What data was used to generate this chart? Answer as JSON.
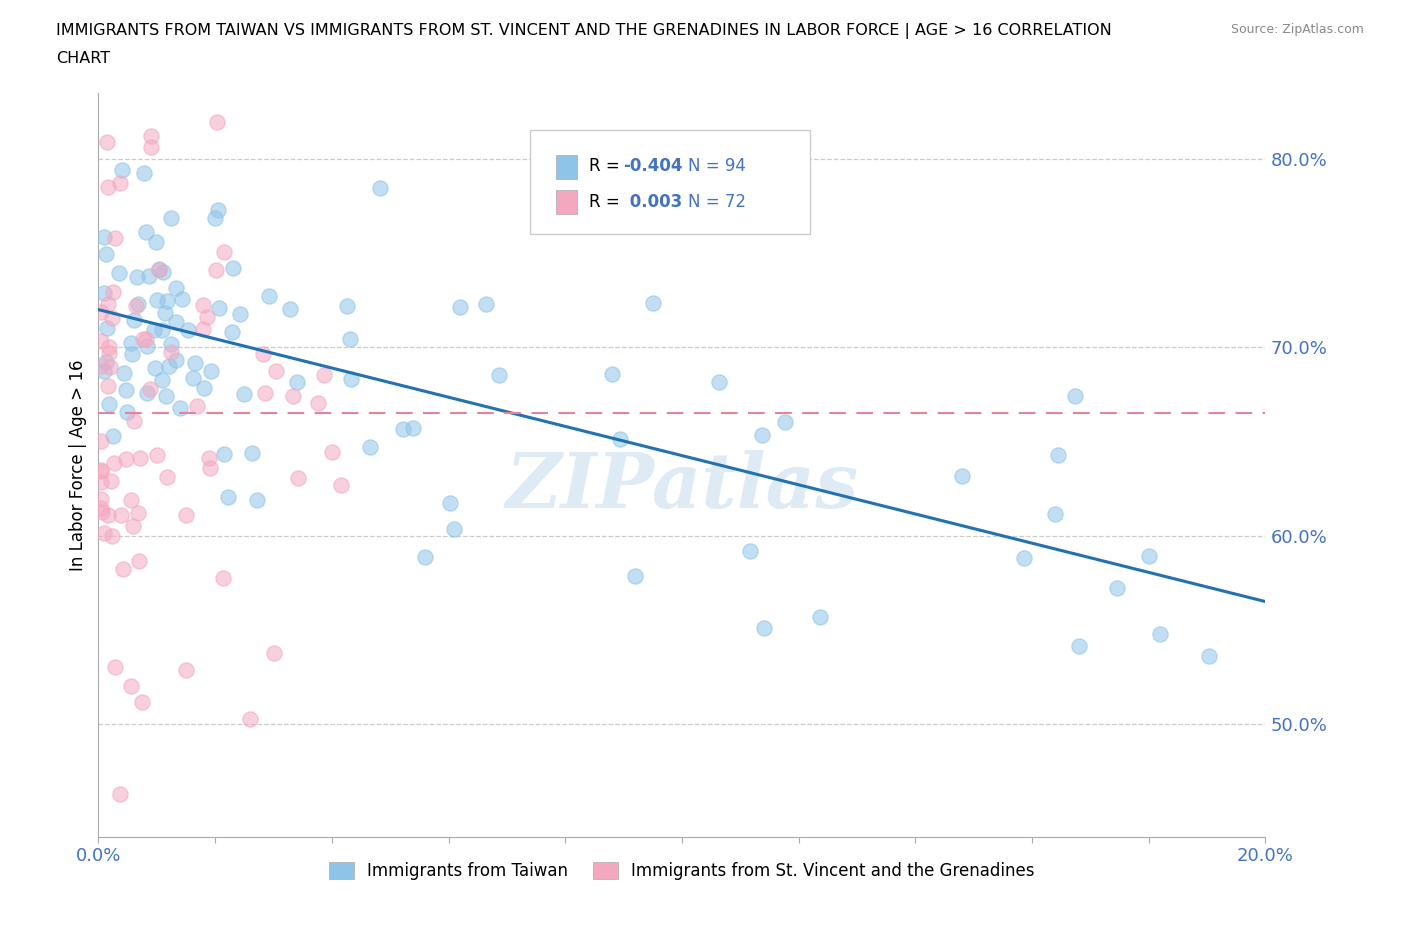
{
  "title_line1": "IMMIGRANTS FROM TAIWAN VS IMMIGRANTS FROM ST. VINCENT AND THE GRENADINES IN LABOR FORCE | AGE > 16 CORRELATION",
  "title_line2": "CHART",
  "source": "Source: ZipAtlas.com",
  "ylabel": "In Labor Force | Age > 16",
  "xlim": [
    0.0,
    0.2
  ],
  "ylim": [
    0.44,
    0.835
  ],
  "ytick_positions": [
    0.5,
    0.6,
    0.7,
    0.8
  ],
  "ytick_labels": [
    "50.0%",
    "60.0%",
    "70.0%",
    "80.0%"
  ],
  "taiwan_color": "#8ec4e8",
  "svg_color": "#f4a8c0",
  "taiwan_line_color": "#2171b5",
  "svg_line_color": "#e8829a",
  "taiwan_trend_x": [
    0.0,
    0.2
  ],
  "taiwan_trend_y": [
    0.72,
    0.565
  ],
  "svg_trend_y": 0.665,
  "watermark": "ZIPatlas",
  "background_color": "#ffffff",
  "grid_color": "#cccccc",
  "taiwan_N": 94,
  "svg_N": 72
}
